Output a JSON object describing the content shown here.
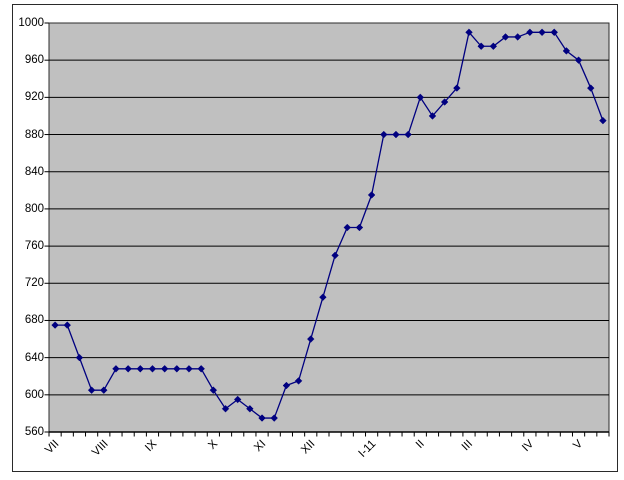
{
  "chart_data": {
    "type": "line",
    "title": "",
    "legend": "none",
    "grid": true,
    "plot_bg_color": "#c0c0c0",
    "grid_color": "#000000",
    "line_color": "#000080",
    "marker": "diamond",
    "ylim": [
      560,
      1000
    ],
    "ytick_step": 40,
    "yticks": [
      1000,
      960,
      920,
      880,
      840,
      800,
      760,
      720,
      680,
      640,
      600,
      560
    ],
    "x_axis": {
      "labels": [
        "VII",
        "VIII",
        "IX",
        "X",
        "XI",
        "XII",
        "I-11",
        "II",
        "III",
        "IV",
        "V"
      ],
      "label_category_index": [
        1,
        5,
        9,
        14,
        18,
        22,
        27,
        31,
        35,
        40,
        44
      ],
      "n_categories": 46
    },
    "series": [
      {
        "name": "",
        "values": [
          675,
          675,
          640,
          605,
          605,
          628,
          628,
          628,
          628,
          628,
          628,
          628,
          628,
          605,
          585,
          595,
          585,
          575,
          575,
          610,
          615,
          660,
          705,
          750,
          780,
          780,
          815,
          880,
          880,
          880,
          920,
          900,
          915,
          930,
          990,
          975,
          975,
          985,
          985,
          990,
          990,
          990,
          970,
          960,
          930,
          895
        ]
      }
    ]
  }
}
